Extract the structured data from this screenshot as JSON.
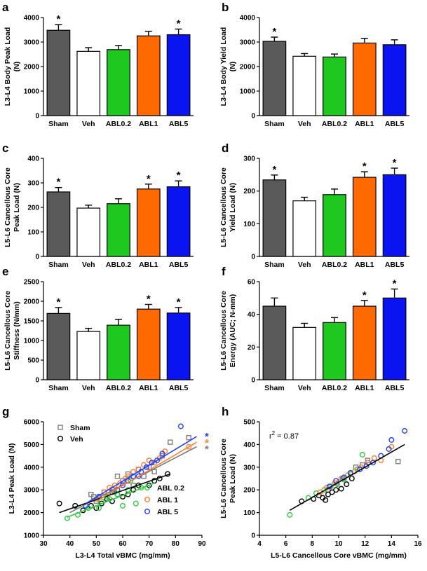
{
  "chart_data": [
    {
      "panel": "a",
      "type": "bar",
      "ylabel": [
        "L3-L4 Body Peak Load",
        "(N)"
      ],
      "categories": [
        "Sham",
        "Veh",
        "ABL0.2",
        "ABL1",
        "ABL5"
      ],
      "values": [
        3480,
        2620,
        2690,
        3250,
        3300
      ],
      "errors": [
        230,
        150,
        170,
        190,
        230
      ],
      "significant": [
        true,
        false,
        false,
        false,
        true
      ],
      "ylim": [
        0,
        4000
      ],
      "yticks": [
        0,
        1000,
        2000,
        3000,
        4000
      ],
      "colors": [
        "#5a5a5a",
        "#ffffff",
        "#1ec81e",
        "#ff6a00",
        "#0a14f0"
      ]
    },
    {
      "panel": "b",
      "type": "bar",
      "ylabel": [
        "L3-L4 Body Yield Load",
        "(N)"
      ],
      "categories": [
        "Sham",
        "Veh",
        "ABL0.2",
        "ABL1",
        "ABL5"
      ],
      "values": [
        3030,
        2420,
        2390,
        2960,
        2890
      ],
      "errors": [
        170,
        110,
        120,
        190,
        200
      ],
      "significant": [
        true,
        false,
        false,
        false,
        false
      ],
      "ylim": [
        0,
        4000
      ],
      "yticks": [
        0,
        1000,
        2000,
        3000,
        4000
      ],
      "colors": [
        "#5a5a5a",
        "#ffffff",
        "#1ec81e",
        "#ff6a00",
        "#0a14f0"
      ]
    },
    {
      "panel": "c",
      "type": "bar",
      "ylabel": [
        "L5-L6 Cancellous Core",
        "Peak Load (N)"
      ],
      "categories": [
        "Sham",
        "Veh",
        "ABL0.2",
        "ABL1",
        "ABL5"
      ],
      "values": [
        263,
        197,
        215,
        275,
        284
      ],
      "errors": [
        18,
        12,
        20,
        20,
        24
      ],
      "significant": [
        true,
        false,
        false,
        true,
        true
      ],
      "ylim": [
        0,
        400
      ],
      "yticks": [
        0,
        100,
        200,
        300,
        400
      ],
      "colors": [
        "#5a5a5a",
        "#ffffff",
        "#1ec81e",
        "#ff6a00",
        "#0a14f0"
      ]
    },
    {
      "panel": "d",
      "type": "bar",
      "ylabel": [
        "L5-L6 Cancellous Core",
        "Yield Load (N)"
      ],
      "categories": [
        "Sham",
        "Veh",
        "ABL0.2",
        "ABL1",
        "ABL5"
      ],
      "values": [
        234,
        170,
        189,
        242,
        250
      ],
      "errors": [
        15,
        11,
        17,
        17,
        20
      ],
      "significant": [
        true,
        false,
        false,
        true,
        true
      ],
      "ylim": [
        0,
        300
      ],
      "yticks": [
        0,
        100,
        200,
        300
      ],
      "colors": [
        "#5a5a5a",
        "#ffffff",
        "#1ec81e",
        "#ff6a00",
        "#0a14f0"
      ]
    },
    {
      "panel": "e",
      "type": "bar",
      "ylabel": [
        "L5-L6 Cancellous Core",
        "Stiffness (N/mm)"
      ],
      "categories": [
        "Sham",
        "Veh",
        "ABL0.2",
        "ABL1",
        "ABL5"
      ],
      "values": [
        1690,
        1230,
        1390,
        1800,
        1700
      ],
      "errors": [
        150,
        80,
        150,
        120,
        140
      ],
      "significant": [
        true,
        false,
        false,
        true,
        true
      ],
      "ylim": [
        0,
        2500
      ],
      "yticks": [
        0,
        500,
        1000,
        1500,
        2000,
        2500
      ],
      "colors": [
        "#5a5a5a",
        "#ffffff",
        "#1ec81e",
        "#ff6a00",
        "#0a14f0"
      ]
    },
    {
      "panel": "f",
      "type": "bar",
      "ylabel": [
        "L5-L6 Cancellous Core",
        "Energy (AUC; N-mm)"
      ],
      "categories": [
        "Sham",
        "Veh",
        "ABL0.2",
        "ABL1",
        "ABL5"
      ],
      "values": [
        45,
        32,
        35,
        45,
        50
      ],
      "errors": [
        5,
        2.5,
        3,
        3.5,
        5.5
      ],
      "significant": [
        false,
        false,
        false,
        true,
        true
      ],
      "ylim": [
        0,
        60
      ],
      "yticks": [
        0,
        20,
        40,
        60
      ],
      "colors": [
        "#5a5a5a",
        "#ffffff",
        "#1ec81e",
        "#ff6a00",
        "#0a14f0"
      ]
    },
    {
      "panel": "g",
      "type": "scatter",
      "xlabel": "L3-L4 Total vBMC (mg/mm)",
      "ylabel": [
        "L3-L4 Peak Load (N)"
      ],
      "xlim": [
        30,
        90
      ],
      "xticks": [
        30,
        40,
        50,
        60,
        70,
        80,
        90
      ],
      "ylim": [
        1000,
        6000
      ],
      "yticks": [
        1000,
        2000,
        3000,
        4000,
        5000,
        6000
      ],
      "legend_top": [
        "Sham",
        "Veh"
      ],
      "legend_bottom": [
        "ABL 0.2",
        "ABL 1",
        "ABL 5"
      ],
      "line_stars": [
        "*",
        "*",
        "*"
      ],
      "series": [
        {
          "name": "Sham",
          "marker": "square",
          "color": "#7f7f7f",
          "x": [
            48,
            49,
            50,
            53,
            56,
            58,
            60,
            62,
            64,
            66,
            68,
            70,
            72,
            75,
            78,
            85
          ],
          "y": [
            2800,
            2700,
            2500,
            2900,
            3000,
            3600,
            3400,
            3700,
            3200,
            3900,
            3600,
            4000,
            3800,
            4500,
            5100,
            5300
          ],
          "fit": [
            [
              40,
              2000
            ],
            [
              88,
              4900
            ]
          ]
        },
        {
          "name": "Veh",
          "marker": "circle",
          "color": "#000000",
          "x": [
            36,
            42,
            45,
            48,
            50,
            52,
            54,
            56,
            58,
            60,
            62,
            64,
            66,
            70,
            72,
            74,
            77
          ],
          "y": [
            2400,
            2300,
            2100,
            2300,
            2200,
            2400,
            2600,
            2500,
            2800,
            2700,
            2800,
            3000,
            3200,
            3200,
            3400,
            3500,
            3700
          ],
          "fit": [
            [
              36,
              2000
            ],
            [
              78,
              3700
            ]
          ]
        },
        {
          "name": "ABL 0.2",
          "marker": "circle",
          "color": "#2ecc40",
          "x": [
            39,
            43,
            47,
            51,
            52,
            54,
            55,
            57,
            58,
            60,
            62,
            63,
            65,
            67
          ],
          "y": [
            1750,
            1900,
            2200,
            2200,
            2500,
            2700,
            2600,
            2900,
            2800,
            2300,
            3000,
            3400,
            2400,
            3100
          ],
          "fit": [
            [
              39,
              1800
            ],
            [
              72,
              3300
            ]
          ]
        },
        {
          "name": "ABL 1",
          "marker": "circle",
          "color": "#ff7f2a",
          "x": [
            50,
            53,
            55,
            57,
            59,
            61,
            62,
            64,
            66,
            68,
            70,
            72,
            74,
            76,
            85
          ],
          "y": [
            2600,
            2900,
            3100,
            3200,
            3300,
            3500,
            3600,
            3800,
            3900,
            4100,
            4300,
            4200,
            4400,
            4700,
            4900
          ],
          "fit": [
            [
              50,
              2500
            ],
            [
              88,
              5100
            ]
          ]
        },
        {
          "name": "ABL 5",
          "marker": "circle",
          "color": "#2040ff",
          "x": [
            46,
            51,
            56,
            58,
            60,
            62,
            64,
            66,
            67,
            69,
            71,
            73,
            75,
            82
          ],
          "y": [
            2300,
            2700,
            2900,
            3000,
            3200,
            3400,
            3600,
            3600,
            3800,
            4000,
            4200,
            4300,
            4600,
            5800
          ],
          "fit": [
            [
              46,
              2400
            ],
            [
              88,
              5350
            ]
          ]
        }
      ]
    },
    {
      "panel": "h",
      "type": "scatter",
      "xlabel": "L5-L6 Cancellous Core vBMC (mg/mm)",
      "ylabel": [
        "L5-L6 Cancellous Core",
        "Peak Load (N)"
      ],
      "xlim": [
        4,
        16
      ],
      "xticks": [
        4,
        6,
        8,
        10,
        12,
        14,
        16
      ],
      "ylim": [
        0,
        500
      ],
      "yticks": [
        0,
        100,
        200,
        300,
        400,
        500
      ],
      "r2_label": "r",
      "r2_sup": "2",
      "r2_value": " = 0.87",
      "fit": [
        [
          6.3,
          110
        ],
        [
          15,
          400
        ]
      ],
      "series": [
        {
          "name": "Sham",
          "marker": "square",
          "color": "#7f7f7f",
          "x": [
            9.2,
            9.8,
            10.3,
            10.9,
            11.3,
            11.8,
            12.2,
            14.5
          ],
          "y": [
            200,
            230,
            250,
            270,
            300,
            310,
            330,
            325
          ]
        },
        {
          "name": "Veh",
          "marker": "circle",
          "color": "#000000",
          "x": [
            7.2,
            8.1,
            8.5,
            8.8,
            9.0,
            9.2,
            9.5,
            9.8,
            10.2,
            10.6,
            11.0
          ],
          "y": [
            150,
            160,
            175,
            165,
            155,
            180,
            190,
            200,
            205,
            225,
            250
          ]
        },
        {
          "name": "ABL 0.2",
          "marker": "circle",
          "color": "#2ecc40",
          "x": [
            6.3,
            7.7,
            8.3,
            8.9,
            9.4,
            9.9,
            10.4,
            10.9,
            11.4,
            11.8
          ],
          "y": [
            90,
            165,
            185,
            200,
            215,
            225,
            245,
            270,
            290,
            355
          ]
        },
        {
          "name": "ABL 1",
          "marker": "circle",
          "color": "#ff7f2a",
          "x": [
            8.6,
            9.1,
            9.7,
            10.2,
            10.7,
            11.2,
            11.7,
            12.2,
            12.7,
            13.2,
            14.0
          ],
          "y": [
            190,
            210,
            230,
            250,
            265,
            280,
            300,
            320,
            340,
            330,
            390
          ]
        },
        {
          "name": "ABL 5",
          "marker": "circle",
          "color": "#2040ff",
          "x": [
            9.3,
            9.8,
            10.4,
            10.9,
            11.6,
            12.1,
            12.6,
            13.2,
            13.8,
            14.0,
            15.0
          ],
          "y": [
            215,
            240,
            255,
            275,
            290,
            305,
            320,
            350,
            380,
            420,
            460
          ]
        }
      ]
    }
  ]
}
